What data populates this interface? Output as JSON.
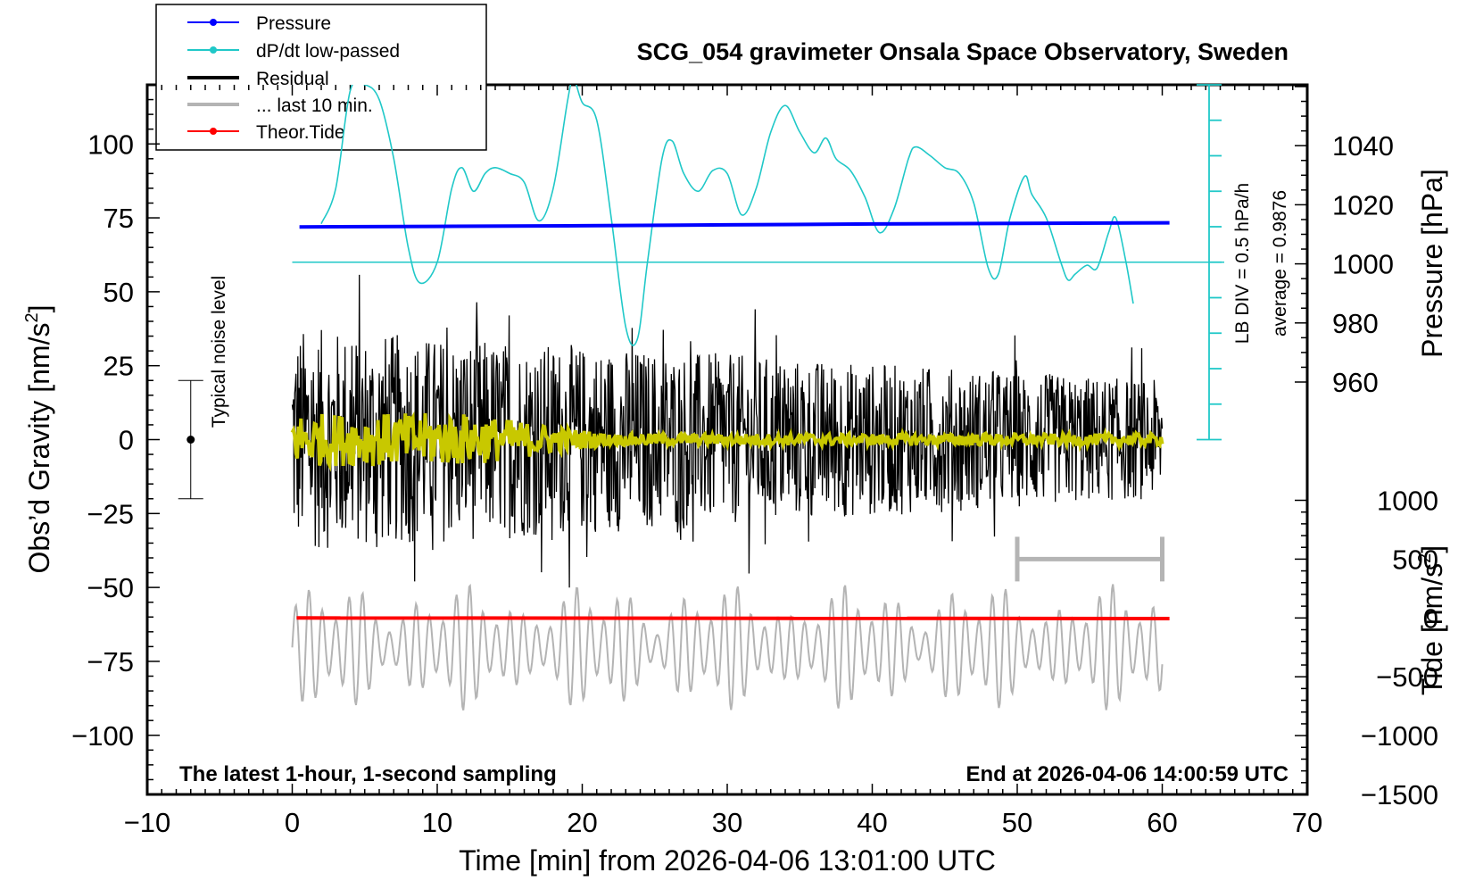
{
  "chart_data": {
    "type": "line",
    "title": "SCG_054 gravimeter Onsala Space Observatory, Sweden",
    "xlabel": "Time [min] from 2026-04-06 13:01:00 UTC",
    "ylabel_left": "Obs’d Gravity [nm/s",
    "ylabel_left_sup": "2",
    "ylabel_left_tail": "]",
    "ylabel_right_pressure": "Pressure [hPa]",
    "ylabel_right_tide": "Tide [nm/s",
    "ylabel_right_tide_sup": "2",
    "ylabel_right_tide_tail": "]",
    "xlim": [
      -10,
      70
    ],
    "ylim": [
      -120,
      120
    ],
    "x_ticks": [
      "−10",
      "0",
      "10",
      "20",
      "30",
      "40",
      "50",
      "60",
      "70"
    ],
    "x_tick_values": [
      -10,
      0,
      10,
      20,
      30,
      40,
      50,
      60,
      70
    ],
    "y_ticks_left": [
      "100",
      "75",
      "50",
      "25",
      "0",
      "−25",
      "−50",
      "−75",
      "−100"
    ],
    "y_tick_values_left": [
      100,
      75,
      50,
      25,
      0,
      -25,
      -50,
      -75,
      -100
    ],
    "pressure_ticks": [
      "1040",
      "1020",
      "1000",
      "980",
      "960"
    ],
    "pressure_tick_values": [
      1040,
      1020,
      1000,
      980,
      960
    ],
    "tide_ticks": [
      "1000",
      "500",
      "0",
      "−500",
      "−1000",
      "−1500"
    ],
    "tide_tick_values": [
      1000,
      500,
      0,
      -500,
      -1000,
      -1500
    ],
    "legend": [
      {
        "label": "Pressure",
        "color": "#0000ff",
        "marker": true
      },
      {
        "label": "dP/dt low-passed",
        "color": "#20c8c8",
        "marker": true
      },
      {
        "label": "Residual",
        "color": "#000000",
        "marker": false
      },
      {
        "label": "... last 10 min.",
        "color": "#b4b4b4",
        "marker": false
      },
      {
        "label": "Theor.Tide",
        "color": "#ff0000",
        "marker": true
      }
    ],
    "annotations": {
      "noise_label": "Typical noise level",
      "noise_range": [
        -20,
        20
      ],
      "noise_x": -7,
      "lb_div": "LB DIV = 0.5 hPa/h",
      "average": "average = 0.9876",
      "bottom_left": "The latest 1-hour, 1-second sampling",
      "bottom_right": "End at 2026-04-06 14:00:59 UTC"
    },
    "series": [
      {
        "name": "Pressure",
        "color": "#0000ff",
        "unit": "hPa",
        "x": [
          0.5,
          10,
          20,
          30,
          40,
          50,
          60.5
        ],
        "values": [
          1012.5,
          1012.7,
          1012.9,
          1013.2,
          1013.5,
          1013.7,
          1013.9
        ]
      },
      {
        "name": "dP/dt low-passed",
        "color": "#20c8c8",
        "unit": "y_left",
        "x": [
          2,
          3,
          4,
          5,
          6,
          7,
          8,
          8.8,
          10,
          11,
          11.7,
          12.5,
          13.3,
          14,
          15,
          16,
          17,
          18,
          19,
          19.4,
          20,
          21,
          22,
          23,
          23.8,
          24.5,
          25.5,
          26.2,
          27,
          28,
          29,
          30,
          31,
          32,
          33,
          34,
          35,
          36,
          36.8,
          37.5,
          38.5,
          39.5,
          40.5,
          41.5,
          42.5,
          43,
          44,
          45,
          46,
          47,
          48,
          48.7,
          49.5,
          50.5,
          51,
          52,
          53,
          53.5,
          54,
          54.8,
          55.5,
          56.3,
          56.8,
          57.5,
          58
        ],
        "values": [
          73,
          85,
          118,
          120,
          115,
          95,
          65,
          53,
          60,
          85,
          92,
          84,
          90,
          92,
          90,
          87,
          74,
          85,
          115,
          122,
          114,
          108,
          75,
          38,
          34,
          60,
          95,
          101,
          90,
          84,
          91,
          90,
          76,
          85,
          104,
          113,
          104,
          97,
          102,
          95,
          91,
          82,
          70,
          78,
          95,
          99,
          96,
          92,
          90,
          80,
          58,
          56,
          75,
          89,
          83,
          75,
          60,
          54,
          56,
          59,
          58,
          70,
          75,
          60,
          46
        ]
      },
      {
        "name": "Residual",
        "color": "#000000",
        "unit": "y_left",
        "x_range": [
          0,
          60
        ],
        "envelope_start": 38,
        "envelope_end": 20
      },
      {
        "name": "Residual low-passed",
        "color": "#c8c800",
        "unit": "y_left",
        "x_range": [
          0,
          60
        ],
        "envelope_start": 9,
        "envelope_end": 2
      },
      {
        "name": "... last 10 min.",
        "color": "#b4b4b4",
        "unit": "nm/s2",
        "x_range": [
          0,
          60
        ],
        "base": -250,
        "amplitude": 550
      },
      {
        "name": "Theor.Tide",
        "color": "#ff0000",
        "unit": "nm/s2",
        "x": [
          0.3,
          60.5
        ],
        "values": [
          0,
          -5
        ]
      }
    ],
    "last10_bracket": {
      "x": [
        50,
        60
      ],
      "tide_value": 500
    }
  }
}
